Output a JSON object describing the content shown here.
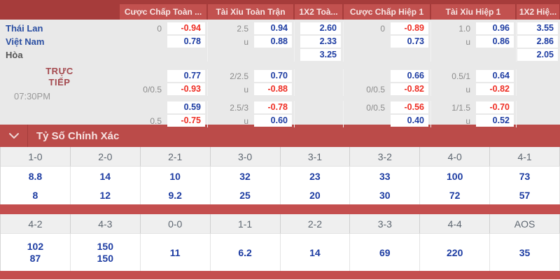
{
  "colors": {
    "accent_red": "#c2514f",
    "dark_red": "#a63c3b",
    "odds_blue": "#1d3ca2",
    "odds_red": "#ee2e24"
  },
  "odds_header": {
    "columns": [
      "Cược Chấp Toàn ...",
      "Tài Xỉu Toàn Trận",
      "1X2 Toà...",
      "Cược Chấp Hiệp 1",
      "Tài Xỉu Hiệp 1",
      "1X2 Hiệ..."
    ]
  },
  "live": {
    "label": "TRỰC TIẾP",
    "time": "07:30PM"
  },
  "odds_rows": [
    {
      "team": "Thái Lan",
      "team_type": "home",
      "ah": {
        "line": "0",
        "price": "-0.94",
        "color": "red"
      },
      "ou": {
        "line": "2.5",
        "price": "0.94",
        "color": "blue"
      },
      "x12": {
        "line": "",
        "price": "2.60",
        "color": "blue"
      },
      "ah1": {
        "line": "0",
        "price": "-0.89",
        "color": "red"
      },
      "ou1": {
        "line": "1.0",
        "price": "0.96",
        "color": "blue"
      },
      "x121": {
        "line": "",
        "price": "3.55",
        "color": "blue"
      }
    },
    {
      "team": "Việt Nam",
      "team_type": "away",
      "ah": {
        "line": "",
        "price": "0.78",
        "color": "blue"
      },
      "ou": {
        "line": "u",
        "price": "0.88",
        "color": "blue"
      },
      "x12": {
        "line": "",
        "price": "2.33",
        "color": "blue"
      },
      "ah1": {
        "line": "",
        "price": "0.73",
        "color": "blue"
      },
      "ou1": {
        "line": "u",
        "price": "0.86",
        "color": "blue"
      },
      "x121": {
        "line": "",
        "price": "2.86",
        "color": "blue"
      }
    },
    {
      "team": "Hòa",
      "team_type": "draw",
      "ah": null,
      "ou": null,
      "x12": {
        "line": "",
        "price": "3.25",
        "color": "blue"
      },
      "ah1": null,
      "ou1": null,
      "x121": {
        "line": "",
        "price": "2.05",
        "color": "blue"
      }
    },
    {
      "team": "",
      "ah": {
        "line": "",
        "price": "0.77",
        "color": "blue"
      },
      "ou": {
        "line": "2/2.5",
        "price": "0.70",
        "color": "blue"
      },
      "x12": null,
      "ah1": {
        "line": "",
        "price": "0.66",
        "color": "blue"
      },
      "ou1": {
        "line": "0.5/1",
        "price": "0.64",
        "color": "blue"
      },
      "x121": null
    },
    {
      "team": "",
      "ah": {
        "line": "0/0.5",
        "price": "-0.93",
        "color": "red"
      },
      "ou": {
        "line": "u",
        "price": "-0.88",
        "color": "red"
      },
      "x12": null,
      "ah1": {
        "line": "0/0.5",
        "price": "-0.82",
        "color": "red"
      },
      "ou1": {
        "line": "u",
        "price": "-0.82",
        "color": "red"
      },
      "x121": null
    },
    {
      "team": "",
      "ah": {
        "line": "",
        "price": "0.59",
        "color": "blue"
      },
      "ou": {
        "line": "2.5/3",
        "price": "-0.78",
        "color": "red"
      },
      "x12": null,
      "ah1": {
        "line": "0/0.5",
        "price": "-0.56",
        "color": "red"
      },
      "ou1": {
        "line": "1/1.5",
        "price": "-0.70",
        "color": "red"
      },
      "x121": null
    },
    {
      "team": "",
      "ah": {
        "line": "0.5",
        "price": "-0.75",
        "color": "red"
      },
      "ou": {
        "line": "u",
        "price": "0.60",
        "color": "blue"
      },
      "x12": null,
      "ah1": {
        "line": "",
        "price": "0.40",
        "color": "blue"
      },
      "ou1": {
        "line": "u",
        "price": "0.52",
        "color": "blue"
      },
      "x121": null
    }
  ],
  "score_section": {
    "title": "Tỷ Số Chính Xác",
    "chevron_icon": "chevron-down-icon",
    "grid1": {
      "headers": [
        "1-0",
        "2-0",
        "2-1",
        "3-0",
        "3-1",
        "3-2",
        "4-0",
        "4-1"
      ],
      "rows": [
        [
          "8.8",
          "14",
          "10",
          "32",
          "23",
          "33",
          "100",
          "73"
        ],
        [
          "8",
          "12",
          "9.2",
          "25",
          "20",
          "30",
          "72",
          "57"
        ]
      ]
    },
    "grid2": {
      "headers": [
        "4-2",
        "4-3",
        "0-0",
        "1-1",
        "2-2",
        "3-3",
        "4-4",
        "AOS"
      ],
      "columns": [
        [
          "102",
          "87"
        ],
        [
          "150",
          "150"
        ],
        [
          "11"
        ],
        [
          "6.2"
        ],
        [
          "14"
        ],
        [
          "69"
        ],
        [
          "220"
        ],
        [
          "35"
        ]
      ]
    }
  }
}
